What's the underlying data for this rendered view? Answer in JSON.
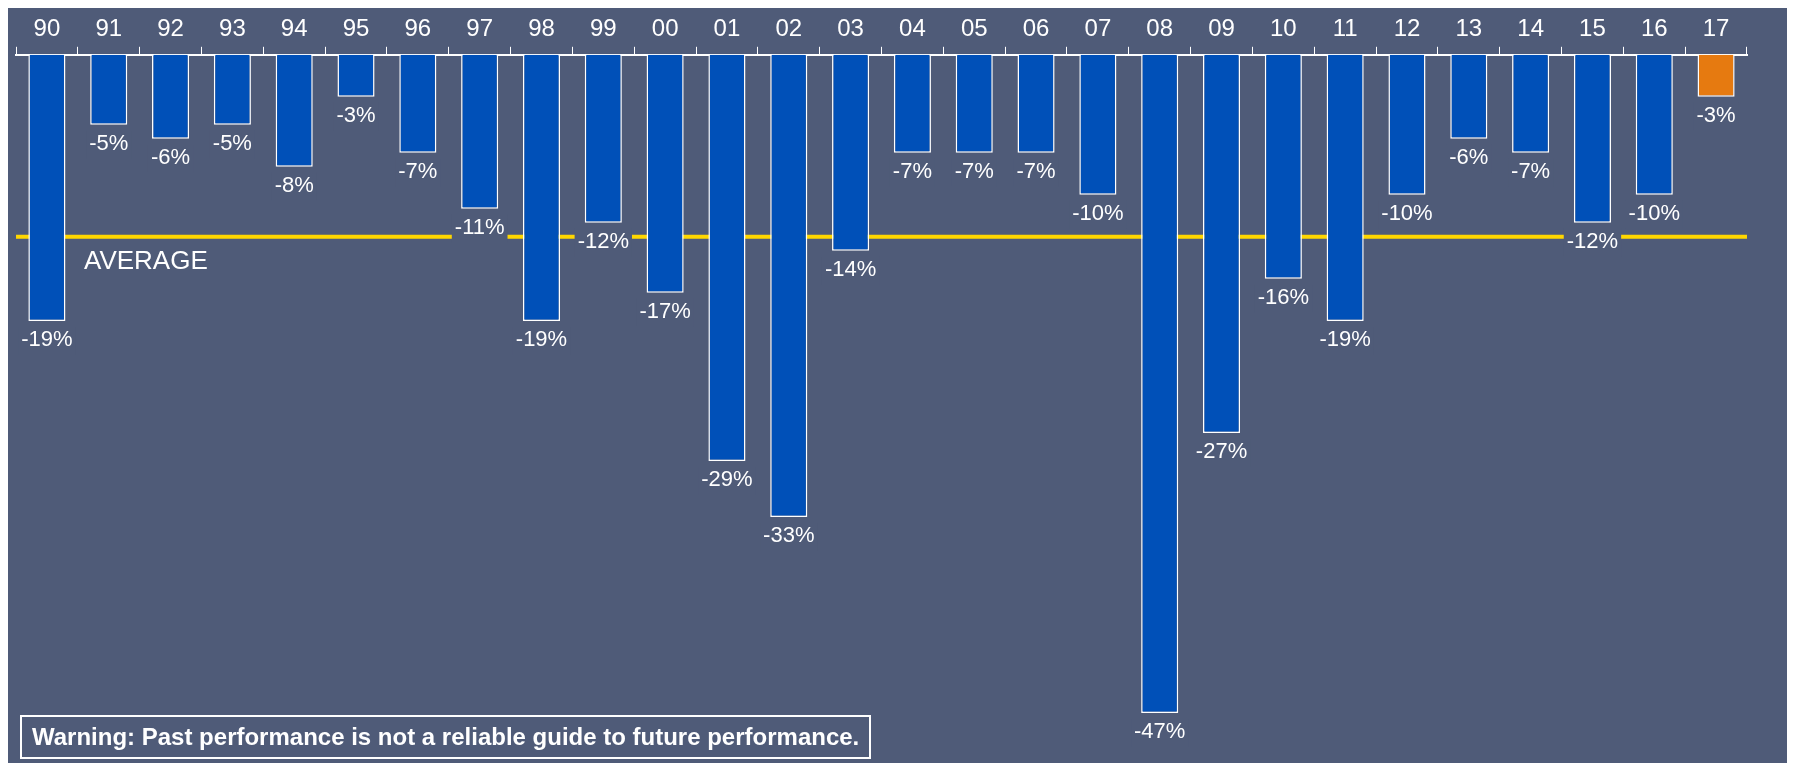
{
  "chart_data": {
    "type": "bar",
    "categories": [
      "90",
      "91",
      "92",
      "93",
      "94",
      "95",
      "96",
      "97",
      "98",
      "99",
      "00",
      "01",
      "02",
      "03",
      "04",
      "05",
      "06",
      "07",
      "08",
      "09",
      "10",
      "11",
      "12",
      "13",
      "14",
      "15",
      "16",
      "17"
    ],
    "values": [
      -19,
      -5,
      -6,
      -5,
      -8,
      -3,
      -7,
      -11,
      -19,
      -12,
      -17,
      -29,
      -33,
      -14,
      -7,
      -7,
      -7,
      -10,
      -47,
      -27,
      -16,
      -19,
      -10,
      -6,
      -7,
      -12,
      -10,
      -3
    ],
    "colors": [
      "#0050b8",
      "#0050b8",
      "#0050b8",
      "#0050b8",
      "#0050b8",
      "#0050b8",
      "#0050b8",
      "#0050b8",
      "#0050b8",
      "#0050b8",
      "#0050b8",
      "#0050b8",
      "#0050b8",
      "#0050b8",
      "#0050b8",
      "#0050b8",
      "#0050b8",
      "#0050b8",
      "#0050b8",
      "#0050b8",
      "#0050b8",
      "#0050b8",
      "#0050b8",
      "#0050b8",
      "#0050b8",
      "#0050b8",
      "#0050b8",
      "#e67a10"
    ],
    "value_labels": [
      "-19%",
      "-5%",
      "-6%",
      "-5%",
      "-8%",
      "-3%",
      "-7%",
      "-11%",
      "-19%",
      "-12%",
      "-17%",
      "-29%",
      "-33%",
      "-14%",
      "-7%",
      "-7%",
      "-7%",
      "-10%",
      "-47%",
      "-27%",
      "-16%",
      "-19%",
      "-10%",
      "-6%",
      "-7%",
      "-12%",
      "-10%",
      "-3%"
    ],
    "ref_lines": [
      {
        "axis": "y",
        "value": -13,
        "label": "AVERAGE",
        "color": "#ffd700"
      }
    ],
    "annotations": [
      "Warning: Past performance is not a reliable guide to future performance."
    ],
    "grid": false,
    "legend": false
  }
}
